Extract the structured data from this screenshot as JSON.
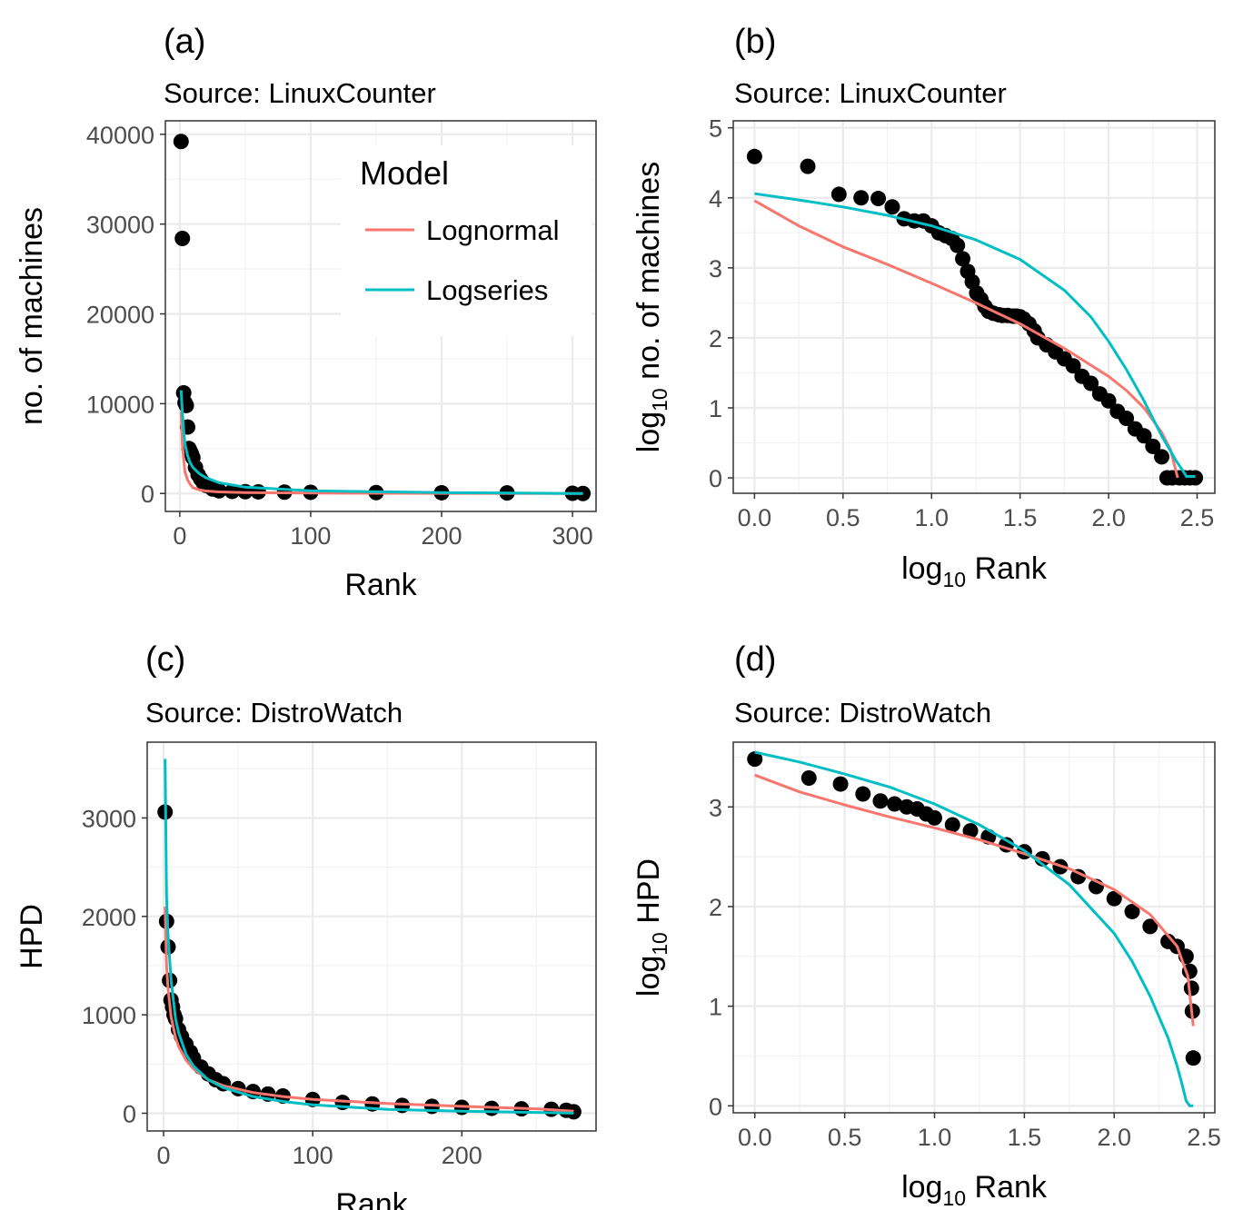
{
  "legend": {
    "title": "Model",
    "items": [
      {
        "label": "Lognormal",
        "color": "#F8766D"
      },
      {
        "label": "Logseries",
        "color": "#00BFC4"
      }
    ]
  },
  "colors": {
    "points": "#000000",
    "grid": "#ebebeb",
    "border": "#333333"
  },
  "chart_data": [
    {
      "panel": "(a)",
      "type": "scatter",
      "subtitle": "Source: LinuxCounter",
      "xlabel": "Rank",
      "ylabel": "no. of machines",
      "xlim": [
        -11,
        318
      ],
      "ylim": [
        -2000,
        41500
      ],
      "xticks": [
        0,
        100,
        200,
        300
      ],
      "yticks": [
        0,
        10000,
        20000,
        30000,
        40000
      ],
      "x": [
        1,
        2,
        3,
        4,
        5,
        6,
        7,
        8,
        9,
        10,
        12,
        14,
        16,
        18,
        20,
        25,
        30,
        40,
        50,
        60,
        80,
        100,
        150,
        200,
        250,
        300,
        308
      ],
      "y": [
        39200,
        28400,
        11200,
        10100,
        9800,
        7400,
        5000,
        4700,
        4400,
        4000,
        2900,
        2100,
        1600,
        1200,
        900,
        500,
        300,
        230,
        200,
        180,
        150,
        130,
        100,
        80,
        60,
        20,
        1
      ],
      "series": [
        {
          "name": "Lognormal",
          "x": [
            1,
            2,
            3,
            4,
            6,
            8,
            10,
            15,
            20,
            30,
            50,
            100,
            200,
            308
          ],
          "y": [
            9120,
            5500,
            3800,
            2400,
            1500,
            1000,
            650,
            400,
            280,
            170,
            90,
            40,
            15,
            1
          ]
        },
        {
          "name": "Logseries",
          "x": [
            1,
            2,
            3,
            4,
            6,
            8,
            10,
            15,
            20,
            30,
            50,
            100,
            200,
            280,
            300,
            308
          ],
          "y": [
            11500,
            9000,
            7000,
            5500,
            4200,
            3400,
            2900,
            2200,
            1750,
            1200,
            700,
            300,
            90,
            20,
            5,
            1
          ]
        }
      ],
      "legend_position": "top-right"
    },
    {
      "panel": "(b)",
      "type": "scatter",
      "subtitle": "Source: LinuxCounter",
      "xlabel": "log10 Rank",
      "ylabel": "log10 no. of machines",
      "xlim": [
        -0.12,
        2.6
      ],
      "ylim": [
        -0.22,
        5.1
      ],
      "xticks": [
        0.0,
        0.5,
        1.0,
        1.5,
        2.0,
        2.5
      ],
      "xtick_labels": [
        "0.0",
        "0.5",
        "1.0",
        "1.5",
        "2.0",
        "2.5"
      ],
      "yticks": [
        0,
        1,
        2,
        3,
        4,
        5
      ],
      "x": [
        0.0,
        0.301,
        0.477,
        0.602,
        0.699,
        0.778,
        0.845,
        0.903,
        0.954,
        1.0,
        1.041,
        1.079,
        1.114,
        1.146,
        1.176,
        1.204,
        1.23,
        1.255,
        1.279,
        1.301,
        1.322,
        1.35,
        1.38,
        1.4,
        1.43,
        1.46,
        1.48,
        1.5,
        1.52,
        1.55,
        1.58,
        1.6,
        1.65,
        1.7,
        1.75,
        1.8,
        1.85,
        1.9,
        1.95,
        2.0,
        2.05,
        2.1,
        2.15,
        2.2,
        2.25,
        2.3,
        2.33,
        2.36,
        2.4,
        2.43,
        2.46,
        2.49
      ],
      "y": [
        4.59,
        4.45,
        4.05,
        4.0,
        3.99,
        3.87,
        3.7,
        3.67,
        3.67,
        3.6,
        3.5,
        3.46,
        3.42,
        3.32,
        3.13,
        2.95,
        2.8,
        2.64,
        2.55,
        2.45,
        2.38,
        2.35,
        2.33,
        2.32,
        2.32,
        2.31,
        2.31,
        2.3,
        2.27,
        2.2,
        2.1,
        2.0,
        1.9,
        1.8,
        1.7,
        1.6,
        1.45,
        1.35,
        1.2,
        1.1,
        0.95,
        0.85,
        0.7,
        0.6,
        0.45,
        0.3,
        0.0,
        0.0,
        0.0,
        0.0,
        0.0,
        0.0
      ],
      "series": [
        {
          "name": "Lognormal",
          "x": [
            0.0,
            0.25,
            0.5,
            0.75,
            1.0,
            1.25,
            1.5,
            1.75,
            2.0,
            2.1,
            2.2,
            2.3,
            2.35,
            2.39
          ],
          "y": [
            3.96,
            3.6,
            3.3,
            3.05,
            2.78,
            2.5,
            2.2,
            1.85,
            1.45,
            1.25,
            1.0,
            0.65,
            0.4,
            0.0
          ]
        },
        {
          "name": "Logseries",
          "x": [
            0.0,
            0.25,
            0.5,
            0.75,
            1.0,
            1.25,
            1.5,
            1.75,
            1.9,
            2.0,
            2.1,
            2.2,
            2.3,
            2.38,
            2.42,
            2.44,
            2.49
          ],
          "y": [
            4.06,
            3.97,
            3.87,
            3.75,
            3.6,
            3.4,
            3.12,
            2.68,
            2.3,
            1.95,
            1.55,
            1.1,
            0.6,
            0.25,
            0.1,
            0.02,
            0.02
          ]
        }
      ]
    },
    {
      "panel": "(c)",
      "type": "scatter",
      "subtitle": "Source: DistroWatch",
      "xlabel": "Rank",
      "ylabel": "HPD",
      "xlim": [
        -11,
        290
      ],
      "ylim": [
        -180,
        3770
      ],
      "xticks": [
        0,
        100,
        200
      ],
      "yticks": [
        0,
        1000,
        2000,
        3000
      ],
      "x": [
        1,
        2,
        3,
        4,
        5,
        6,
        7,
        8,
        10,
        12,
        15,
        18,
        20,
        25,
        30,
        35,
        40,
        50,
        60,
        70,
        80,
        100,
        120,
        140,
        160,
        180,
        200,
        220,
        240,
        260,
        270,
        275
      ],
      "y": [
        3060,
        1950,
        1690,
        1350,
        1150,
        1080,
        1000,
        960,
        850,
        780,
        700,
        620,
        560,
        470,
        400,
        340,
        300,
        250,
        220,
        195,
        175,
        140,
        110,
        95,
        80,
        70,
        60,
        50,
        45,
        40,
        30,
        15
      ],
      "series": [
        {
          "name": "Lognormal",
          "x": [
            1,
            2,
            3,
            5,
            8,
            10,
            15,
            20,
            30,
            40,
            60,
            80,
            100,
            150,
            200,
            250,
            275
          ],
          "y": [
            2100,
            1500,
            1260,
            980,
            770,
            680,
            540,
            450,
            340,
            280,
            210,
            170,
            140,
            100,
            70,
            45,
            20
          ]
        },
        {
          "name": "Logseries",
          "x": [
            1,
            2,
            3,
            5,
            8,
            10,
            15,
            20,
            30,
            40,
            60,
            80,
            100,
            150,
            200,
            250,
            275
          ],
          "y": [
            3600,
            2200,
            1800,
            1350,
            960,
            820,
            600,
            480,
            340,
            260,
            170,
            120,
            85,
            40,
            20,
            8,
            1
          ]
        }
      ]
    },
    {
      "panel": "(d)",
      "type": "scatter",
      "subtitle": "Source: DistroWatch",
      "xlabel": "log10 Rank",
      "ylabel": "log10 HPD",
      "xlim": [
        -0.12,
        2.56
      ],
      "ylim": [
        -0.07,
        3.65
      ],
      "xticks": [
        0.0,
        0.5,
        1.0,
        1.5,
        2.0,
        2.5
      ],
      "xtick_labels": [
        "0.0",
        "0.5",
        "1.0",
        "1.5",
        "2.0",
        "2.5"
      ],
      "yticks": [
        0,
        1,
        2,
        3
      ],
      "x": [
        0.0,
        0.301,
        0.477,
        0.602,
        0.699,
        0.778,
        0.845,
        0.903,
        0.954,
        1.0,
        1.1,
        1.2,
        1.3,
        1.4,
        1.5,
        1.6,
        1.7,
        1.8,
        1.9,
        2.0,
        2.1,
        2.2,
        2.3,
        2.35,
        2.4,
        2.42,
        2.43,
        2.435,
        2.44
      ],
      "y": [
        3.48,
        3.29,
        3.23,
        3.13,
        3.06,
        3.03,
        3.0,
        2.98,
        2.93,
        2.89,
        2.82,
        2.76,
        2.7,
        2.62,
        2.55,
        2.48,
        2.4,
        2.3,
        2.2,
        2.08,
        1.95,
        1.8,
        1.65,
        1.6,
        1.5,
        1.35,
        1.18,
        0.95,
        0.48
      ],
      "series": [
        {
          "name": "Lognormal",
          "x": [
            0.0,
            0.25,
            0.5,
            0.75,
            1.0,
            1.25,
            1.5,
            1.75,
            2.0,
            2.2,
            2.35,
            2.41,
            2.44
          ],
          "y": [
            3.32,
            3.15,
            3.02,
            2.9,
            2.79,
            2.67,
            2.53,
            2.38,
            2.17,
            1.92,
            1.6,
            1.3,
            0.8
          ]
        },
        {
          "name": "Logseries",
          "x": [
            0.0,
            0.25,
            0.5,
            0.75,
            1.0,
            1.25,
            1.5,
            1.75,
            2.0,
            2.1,
            2.2,
            2.3,
            2.35,
            2.38,
            2.4,
            2.42,
            2.44
          ],
          "y": [
            3.55,
            3.45,
            3.33,
            3.2,
            3.03,
            2.82,
            2.56,
            2.22,
            1.73,
            1.45,
            1.1,
            0.68,
            0.4,
            0.2,
            0.05,
            0.0,
            0.0
          ]
        }
      ]
    }
  ]
}
